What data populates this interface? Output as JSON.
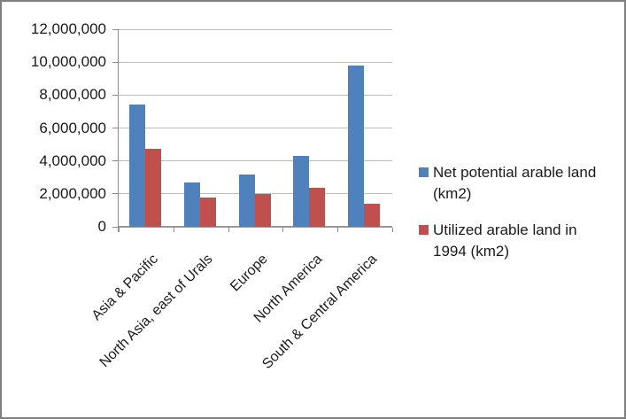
{
  "chart_data": {
    "type": "bar",
    "title": "",
    "xlabel": "",
    "ylabel": "",
    "categories": [
      "Asia & Pacific",
      "North Asia, east of Urals",
      "Europe",
      "North America",
      "South & Central America"
    ],
    "series": [
      {
        "name": "Net potential arable land (km2)",
        "color": "#4F81BD",
        "values": [
          7400000,
          2700000,
          3200000,
          4300000,
          9800000
        ]
      },
      {
        "name": "Utilized arable land in 1994 (km2)",
        "color": "#C0504D",
        "values": [
          4750000,
          1750000,
          2000000,
          2350000,
          1400000
        ]
      }
    ],
    "ylim": [
      0,
      12000000
    ],
    "ytick_step": 2000000,
    "ytick_labels": [
      "0",
      "2,000,000",
      "4,000,000",
      "6,000,000",
      "8,000,000",
      "10,000,000",
      "12,000,000"
    ],
    "grid": true,
    "legend_position": "right",
    "legend": [
      {
        "lines": [
          "Net potential arable land",
          "(km2)"
        ],
        "color": "#4F81BD"
      },
      {
        "lines": [
          "Utilized arable land in",
          "1994 (km2)"
        ],
        "color": "#C0504D"
      }
    ]
  },
  "colors": {
    "series_blue": "#4F81BD",
    "series_red": "#C0504D",
    "gridline": "#bdbdbd",
    "axis": "#8f8f8f",
    "text": "#1a1a1a",
    "frame_border": "#7f7f7f",
    "background": "#ffffff"
  }
}
